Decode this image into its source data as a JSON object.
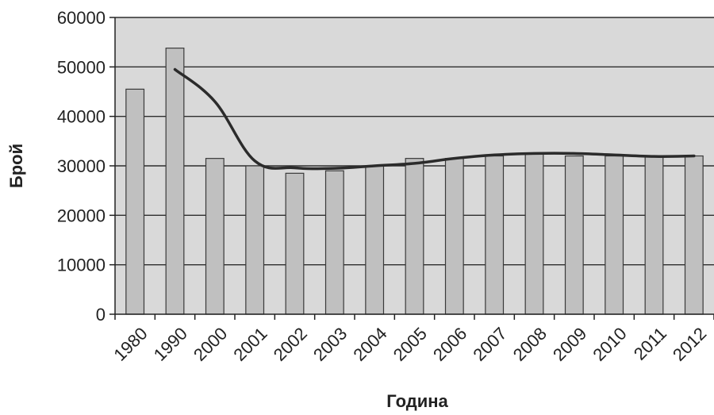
{
  "chart_data": {
    "type": "bar",
    "title": "",
    "xlabel": "Година",
    "ylabel": "Брой",
    "categories": [
      "1980",
      "1990",
      "2000",
      "2001",
      "2002",
      "2003",
      "2004",
      "2005",
      "2006",
      "2007",
      "2008",
      "2009",
      "2010",
      "2011",
      "2012"
    ],
    "series": [
      {
        "type": "bar",
        "values": [
          45500,
          53800,
          31500,
          30000,
          28500,
          29000,
          30000,
          31500,
          31500,
          32000,
          32500,
          32000,
          32000,
          31800,
          32000
        ]
      },
      {
        "type": "line",
        "smooth": true,
        "values": [
          null,
          49500,
          43000,
          31000,
          29600,
          29500,
          30000,
          30500,
          31500,
          32200,
          32500,
          32500,
          32200,
          31900,
          32000
        ]
      }
    ],
    "ylim": [
      0,
      60000
    ],
    "yticks": [
      0,
      10000,
      20000,
      30000,
      40000,
      50000,
      60000
    ],
    "grid": true,
    "legend": "none",
    "colors": {
      "plot_background": "#d9d9d9",
      "bar_fill": "#c0c0c0",
      "bar_stroke": "#3a3a3a",
      "line": "#2b2b2b",
      "grid": "#2e2e2e"
    }
  }
}
